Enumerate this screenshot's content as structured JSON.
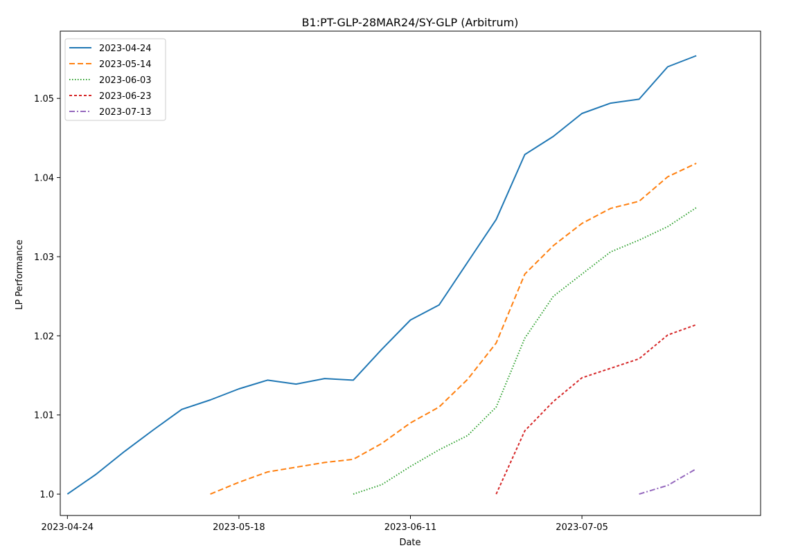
{
  "chart_data": {
    "type": "line",
    "title": "B1:PT-GLP-28MAR24/SY-GLP (Arbitrum)",
    "xlabel": "Date",
    "ylabel": "LP Performance",
    "xlim": [
      "2023-04-23",
      "2023-07-30"
    ],
    "ylim": [
      0.9973,
      1.0585
    ],
    "x_ticks": [
      "2023-04-24",
      "2023-05-18",
      "2023-06-11",
      "2023-07-05"
    ],
    "y_ticks": [
      1.0,
      1.01,
      1.02,
      1.03,
      1.04,
      1.05
    ],
    "y_tick_labels": [
      "1.0",
      "1.01",
      "1.02",
      "1.03",
      "1.04",
      "1.05"
    ],
    "grid": false,
    "legend_position": "top-left",
    "series": [
      {
        "name": "2023-04-24",
        "color": "#1f77b4",
        "style": "solid",
        "points": [
          [
            "2023-04-24",
            1.0
          ],
          [
            "2023-04-28",
            1.0025
          ],
          [
            "2023-05-02",
            1.0054
          ],
          [
            "2023-05-06",
            1.0081
          ],
          [
            "2023-05-10",
            1.0107
          ],
          [
            "2023-05-14",
            1.0119
          ],
          [
            "2023-05-18",
            1.0133
          ],
          [
            "2023-05-22",
            1.0144
          ],
          [
            "2023-05-26",
            1.0139
          ],
          [
            "2023-05-30",
            1.0146
          ],
          [
            "2023-06-03",
            1.0144
          ],
          [
            "2023-06-07",
            1.0183
          ],
          [
            "2023-06-11",
            1.022
          ],
          [
            "2023-06-15",
            1.0239
          ],
          [
            "2023-06-19",
            1.0293
          ],
          [
            "2023-06-23",
            1.0347
          ],
          [
            "2023-06-27",
            1.0429
          ],
          [
            "2023-07-01",
            1.0452
          ],
          [
            "2023-07-05",
            1.0481
          ],
          [
            "2023-07-09",
            1.0494
          ],
          [
            "2023-07-13",
            1.0499
          ],
          [
            "2023-07-17",
            1.054
          ],
          [
            "2023-07-21",
            1.0554
          ]
        ]
      },
      {
        "name": "2023-05-14",
        "color": "#ff7f0e",
        "style": "dashed",
        "points": [
          [
            "2023-05-14",
            1.0
          ],
          [
            "2023-05-18",
            1.0015
          ],
          [
            "2023-05-22",
            1.0028
          ],
          [
            "2023-05-26",
            1.0034
          ],
          [
            "2023-05-30",
            1.004
          ],
          [
            "2023-06-03",
            1.0044
          ],
          [
            "2023-06-07",
            1.0064
          ],
          [
            "2023-06-11",
            1.009
          ],
          [
            "2023-06-15",
            1.011
          ],
          [
            "2023-06-19",
            1.0145
          ],
          [
            "2023-06-23",
            1.0191
          ],
          [
            "2023-06-27",
            1.0278
          ],
          [
            "2023-07-01",
            1.0314
          ],
          [
            "2023-07-05",
            1.0342
          ],
          [
            "2023-07-09",
            1.0361
          ],
          [
            "2023-07-13",
            1.037
          ],
          [
            "2023-07-17",
            1.0401
          ],
          [
            "2023-07-21",
            1.0418
          ]
        ]
      },
      {
        "name": "2023-06-03",
        "color": "#2ca02c",
        "style": "dotted",
        "points": [
          [
            "2023-06-03",
            1.0
          ],
          [
            "2023-06-07",
            1.0012
          ],
          [
            "2023-06-11",
            1.0035
          ],
          [
            "2023-06-15",
            1.0056
          ],
          [
            "2023-06-19",
            1.0074
          ],
          [
            "2023-06-23",
            1.011
          ],
          [
            "2023-06-27",
            1.0197
          ],
          [
            "2023-07-01",
            1.025
          ],
          [
            "2023-07-05",
            1.0278
          ],
          [
            "2023-07-09",
            1.0306
          ],
          [
            "2023-07-13",
            1.0321
          ],
          [
            "2023-07-17",
            1.0338
          ],
          [
            "2023-07-21",
            1.0362
          ]
        ]
      },
      {
        "name": "2023-06-23",
        "color": "#d62728",
        "style": "short-dash",
        "points": [
          [
            "2023-06-23",
            1.0
          ],
          [
            "2023-06-27",
            1.008
          ],
          [
            "2023-07-01",
            1.0117
          ],
          [
            "2023-07-05",
            1.0147
          ],
          [
            "2023-07-09",
            1.0159
          ],
          [
            "2023-07-13",
            1.0171
          ],
          [
            "2023-07-17",
            1.0201
          ],
          [
            "2023-07-21",
            1.0214
          ]
        ]
      },
      {
        "name": "2023-07-13",
        "color": "#9467bd",
        "style": "dashdot",
        "points": [
          [
            "2023-07-13",
            1.0
          ],
          [
            "2023-07-17",
            1.0011
          ],
          [
            "2023-07-21",
            1.0032
          ]
        ]
      }
    ]
  }
}
